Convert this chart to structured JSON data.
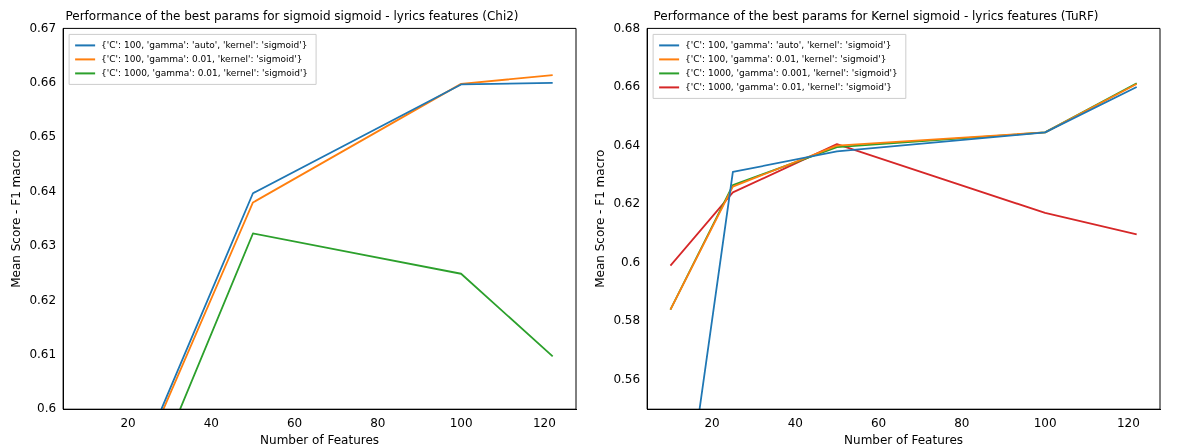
{
  "chart_data": [
    {
      "type": "line",
      "title": "Performance of the best params for sigmoid sigmoid - lyrics features (Chi2)",
      "xlabel": "Number of Features",
      "ylabel": "Mean Score - F1 macro",
      "xlim": [
        4.4,
        127.6
      ],
      "xticks": [
        20,
        40,
        60,
        80,
        100,
        120
      ],
      "ylim": [
        0.6,
        0.67
      ],
      "yticks": [
        0.6,
        0.61,
        0.62,
        0.63,
        0.64,
        0.65,
        0.66,
        0.67
      ],
      "grid": false,
      "legend": "top left",
      "marker": "none",
      "line_style": "solid",
      "series": [
        {
          "name": "{'C': 100, 'gamma': 'auto', 'kernel': 'sigmoid'}",
          "color": "#1f77b4",
          "x": [
            28,
            50,
            100,
            122
          ],
          "values": [
            0.6,
            0.6397,
            0.6597,
            0.66
          ]
        },
        {
          "name": "{'C': 100, 'gamma': 0.01, 'kernel': 'sigmoid'}",
          "color": "#ff7f0e",
          "x": [
            28.5,
            50,
            100,
            122
          ],
          "values": [
            0.6,
            0.638,
            0.6598,
            0.6614
          ]
        },
        {
          "name": "{'C': 1000, 'gamma': 0.01, 'kernel': 'sigmoid'}",
          "color": "#2ca02c",
          "x": [
            32.5,
            50,
            100,
            122
          ],
          "values": [
            0.6,
            0.6323,
            0.6249,
            0.6097
          ]
        }
      ]
    },
    {
      "type": "line",
      "title": "Performance of the best params for Kernel sigmoid - lyrics features (TuRF)",
      "xlabel": "Number of Features",
      "ylabel": "Mean Score - F1 macro",
      "x": [
        10,
        25,
        50,
        100,
        122
      ],
      "xlim": [
        4.4,
        127.6
      ],
      "xticks": [
        20,
        40,
        60,
        80,
        100,
        120
      ],
      "ylim": [
        0.55,
        0.68
      ],
      "yticks": [
        0.56,
        0.58,
        0.6,
        0.62,
        0.64,
        0.66,
        0.68
      ],
      "grid": false,
      "legend": "top left",
      "marker": "none",
      "line_style": "solid",
      "series": [
        {
          "name": "{'C': 100, 'gamma': 'auto', 'kernel': 'sigmoid'}",
          "color": "#1f77b4",
          "x": [
            17,
            25,
            50,
            100,
            122
          ],
          "values": [
            0.55,
            0.631,
            0.638,
            0.6445,
            0.66
          ]
        },
        {
          "name": "{'C': 100, 'gamma': 0.01, 'kernel': 'sigmoid'}",
          "color": "#ff7f0e",
          "values": [
            0.584,
            0.626,
            0.64,
            0.6445,
            0.661
          ]
        },
        {
          "name": "{'C': 1000, 'gamma': 0.001, 'kernel': 'sigmoid'}",
          "color": "#2ca02c",
          "values": [
            0.584,
            0.6265,
            0.6395,
            0.6445,
            0.6613
          ]
        },
        {
          "name": "{'C': 1000, 'gamma': 0.01, 'kernel': 'sigmoid'}",
          "color": "#d62728",
          "values": [
            0.599,
            0.624,
            0.6405,
            0.617,
            0.6097
          ]
        }
      ]
    }
  ]
}
